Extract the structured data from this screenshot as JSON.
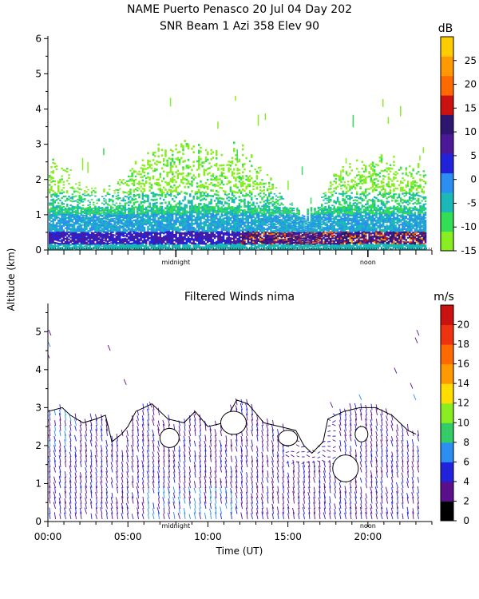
{
  "title_line1": "NAME Puerto Penasco  20 Jul 04 Day 202",
  "title_line2": "SNR Beam 1 Azi 358 Elev 90",
  "colors": {
    "snr_palette": [
      "#88ee22",
      "#33dd55",
      "#1ab8b8",
      "#2a8ff0",
      "#2222dd",
      "#4b1899",
      "#2d1670",
      "#cc1111",
      "#ff6a00",
      "#ff9900",
      "#ffcc00"
    ],
    "wind_palette": [
      "#000000",
      "#5a0f8c",
      "#2222dd",
      "#2a8ff0",
      "#33cc66",
      "#88ee22",
      "#ffdd00",
      "#ff9900",
      "#ff6a00",
      "#ee3311",
      "#cc1111"
    ],
    "contour": "#000000"
  },
  "chart_data": [
    {
      "type": "heatmap",
      "name": "SNR Beam 1 Azi 358 Elev 90",
      "title": "SNR Beam 1 Azi 358 Elev 90",
      "ylabel": "Altitude (km)",
      "ylim": [
        0,
        6
      ],
      "yticks": [
        "0",
        "1",
        "2",
        "3",
        "4",
        "5",
        "6"
      ],
      "xlim_hours": [
        0,
        24
      ],
      "x_markers": [
        {
          "hour": 8,
          "label": "midnight"
        },
        {
          "hour": 20,
          "label": "noon"
        }
      ],
      "colorbar": {
        "unit": "dB",
        "ticks": [
          "-15",
          "-10",
          "-5",
          "0",
          "5",
          "10",
          "15",
          "20",
          "25"
        ],
        "range": [
          -15,
          30
        ]
      },
      "signal_top_km": [
        [
          0.0,
          2.5
        ],
        [
          1.0,
          2.2
        ],
        [
          2.0,
          1.8
        ],
        [
          3.0,
          1.6
        ],
        [
          4.0,
          1.7
        ],
        [
          5.0,
          2.2
        ],
        [
          6.0,
          2.6
        ],
        [
          7.0,
          2.8
        ],
        [
          8.0,
          2.9
        ],
        [
          9.0,
          2.9
        ],
        [
          10.0,
          2.7
        ],
        [
          11.0,
          2.5
        ],
        [
          11.5,
          3.0
        ],
        [
          12.5,
          2.6
        ],
        [
          13.5,
          2.3
        ],
        [
          14.5,
          1.6
        ],
        [
          15.5,
          1.2
        ],
        [
          16.5,
          1.0
        ],
        [
          17.0,
          1.4
        ],
        [
          18.0,
          2.3
        ],
        [
          19.0,
          2.4
        ],
        [
          20.0,
          2.6
        ],
        [
          21.0,
          2.6
        ],
        [
          22.0,
          2.5
        ],
        [
          23.0,
          2.3
        ],
        [
          23.5,
          2.2
        ]
      ],
      "strong_layer_km": [
        0.15,
        0.5
      ]
    },
    {
      "type": "heatmap",
      "name": "Filtered Winds nima",
      "title": "Filtered Winds nima",
      "xlabel": "Time (UT)",
      "ylabel": "Altitude (km)",
      "ylim": [
        0,
        5.7
      ],
      "yticks": [
        "0",
        "1",
        "2",
        "3",
        "4",
        "5"
      ],
      "xlim_hours": [
        0,
        24
      ],
      "xticks": [
        "00:00",
        "05:00",
        "10:00",
        "15:00",
        "20:00"
      ],
      "x_markers": [
        {
          "hour": 8,
          "label": "midnight"
        },
        {
          "hour": 20,
          "label": "noon"
        }
      ],
      "colorbar": {
        "unit": "m/s",
        "ticks": [
          "0",
          "2",
          "4",
          "6",
          "8",
          "10",
          "12",
          "14",
          "16",
          "18",
          "20"
        ],
        "range": [
          0,
          22
        ]
      },
      "wind_top_km": [
        [
          0.0,
          2.9
        ],
        [
          0.9,
          3.0
        ],
        [
          1.4,
          2.8
        ],
        [
          2.2,
          2.6
        ],
        [
          3.0,
          2.7
        ],
        [
          3.6,
          2.8
        ],
        [
          4.0,
          2.1
        ],
        [
          4.6,
          2.3
        ],
        [
          5.0,
          2.5
        ],
        [
          5.5,
          2.9
        ],
        [
          6.0,
          3.0
        ],
        [
          6.5,
          3.1
        ],
        [
          7.5,
          2.7
        ],
        [
          8.5,
          2.6
        ],
        [
          9.2,
          2.9
        ],
        [
          10.0,
          2.5
        ],
        [
          11.0,
          2.6
        ],
        [
          11.8,
          3.2
        ],
        [
          12.5,
          3.1
        ],
        [
          13.5,
          2.6
        ],
        [
          14.5,
          2.5
        ],
        [
          15.5,
          2.4
        ],
        [
          16.0,
          2.0
        ],
        [
          16.5,
          1.8
        ],
        [
          17.2,
          2.1
        ],
        [
          17.5,
          2.7
        ],
        [
          18.5,
          2.9
        ],
        [
          19.5,
          3.0
        ],
        [
          20.5,
          3.0
        ],
        [
          21.5,
          2.8
        ],
        [
          22.5,
          2.4
        ],
        [
          23.0,
          2.3
        ]
      ]
    }
  ]
}
